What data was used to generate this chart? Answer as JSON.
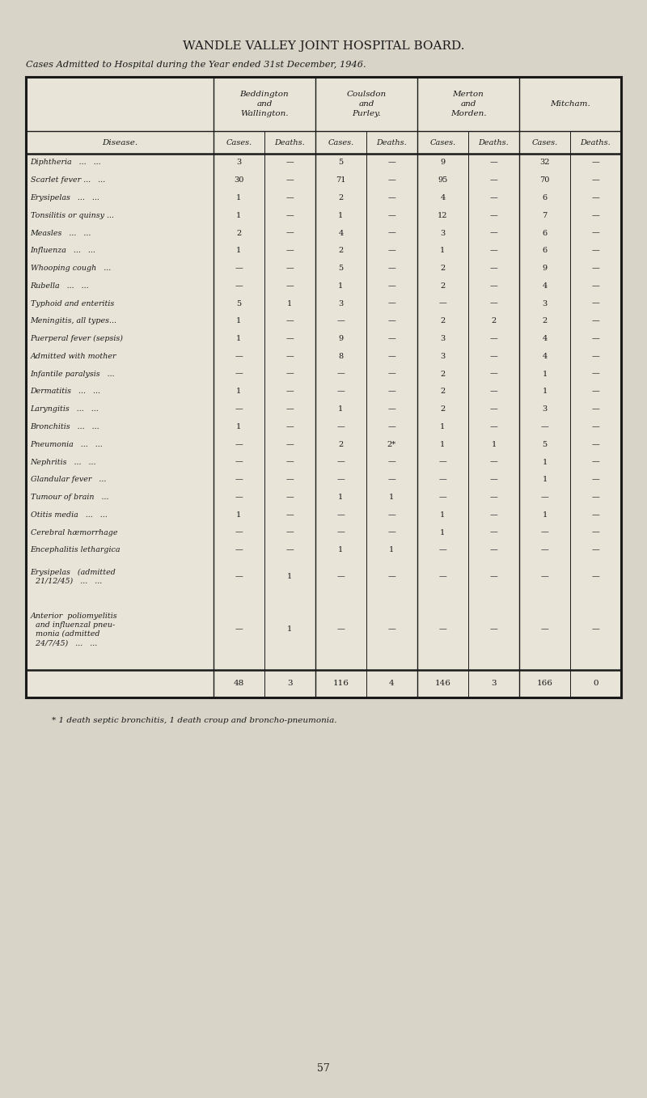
{
  "title": "WANDLE VALLEY JOINT HOSPITAL BOARD.",
  "subtitle": "Cases Admitted to Hospital during the Year ended 31st December, 1946.",
  "bg_color": "#d8d4c8",
  "table_bg": "#e8e4d8",
  "group_headers": [
    "Beddington\nand\nWallington.",
    "Coulsdon\nand\nPurley.",
    "Merton\nand\nMorden.",
    "Mitcham."
  ],
  "sub_header": [
    "Cases.",
    "Deaths.",
    "Cases.",
    "Deaths.",
    "Cases.",
    "Deaths.",
    "Cases.",
    "Deaths."
  ],
  "disease_col_label": "Disease.",
  "rows": [
    {
      "disease": "Diphtheria   ...   ...",
      "vals": [
        "3",
        "—",
        "5",
        "—",
        "9",
        "—",
        "32",
        "—"
      ],
      "lines": 1
    },
    {
      "disease": "Scarlet fever ...   ...",
      "vals": [
        "30",
        "—",
        "71",
        "—",
        "95",
        "—",
        "70",
        "—"
      ],
      "lines": 1
    },
    {
      "disease": "Erysipelas   ...   ...",
      "vals": [
        "1",
        "—",
        "2",
        "—",
        "4",
        "—",
        "6",
        "—"
      ],
      "lines": 1
    },
    {
      "disease": "Tonsilitis or quinsy ...",
      "vals": [
        "1",
        "—",
        "1",
        "—",
        "12",
        "—",
        "7",
        "—"
      ],
      "lines": 1
    },
    {
      "disease": "Measles   ...   ...",
      "vals": [
        "2",
        "—",
        "4",
        "—",
        "3",
        "—",
        "6",
        "—"
      ],
      "lines": 1
    },
    {
      "disease": "Influenza   ...   ...",
      "vals": [
        "1",
        "—",
        "2",
        "—",
        "1",
        "—",
        "6",
        "—"
      ],
      "lines": 1
    },
    {
      "disease": "Whooping cough   ...",
      "vals": [
        "—",
        "—",
        "5",
        "—",
        "2",
        "—",
        "9",
        "—"
      ],
      "lines": 1
    },
    {
      "disease": "Rubella   ...   ...",
      "vals": [
        "—",
        "—",
        "1",
        "—",
        "2",
        "—",
        "4",
        "—"
      ],
      "lines": 1
    },
    {
      "disease": "Typhoid and enteritis",
      "vals": [
        "5",
        "1",
        "3",
        "—",
        "—",
        "—",
        "3",
        "—"
      ],
      "lines": 1
    },
    {
      "disease": "Meningitis, all types...",
      "vals": [
        "1",
        "—",
        "—",
        "—",
        "2",
        "2",
        "2",
        "—"
      ],
      "lines": 1
    },
    {
      "disease": "Puerperal fever (sepsis)",
      "vals": [
        "1",
        "—",
        "9",
        "—",
        "3",
        "—",
        "4",
        "—"
      ],
      "lines": 1
    },
    {
      "disease": "Admitted with mother",
      "vals": [
        "—",
        "—",
        "8",
        "—",
        "3",
        "—",
        "4",
        "—"
      ],
      "lines": 1
    },
    {
      "disease": "Infantile paralysis   ...",
      "vals": [
        "—",
        "—",
        "—",
        "—",
        "2",
        "—",
        "1",
        "—"
      ],
      "lines": 1
    },
    {
      "disease": "Dermatitis   ...   ...",
      "vals": [
        "1",
        "—",
        "—",
        "—",
        "2",
        "—",
        "1",
        "—"
      ],
      "lines": 1
    },
    {
      "disease": "Laryngitis   ...   ...",
      "vals": [
        "—",
        "—",
        "1",
        "—",
        "2",
        "—",
        "3",
        "—"
      ],
      "lines": 1
    },
    {
      "disease": "Bronchitis   ...   ...",
      "vals": [
        "1",
        "—",
        "—",
        "—",
        "1",
        "—",
        "—",
        "—"
      ],
      "lines": 1
    },
    {
      "disease": "Pneumonia   ...   ...",
      "vals": [
        "—",
        "—",
        "2",
        "2*",
        "1",
        "1",
        "5",
        "—"
      ],
      "lines": 1
    },
    {
      "disease": "Nephritis   ...   ...",
      "vals": [
        "—",
        "—",
        "—",
        "—",
        "—",
        "—",
        "1",
        "—"
      ],
      "lines": 1
    },
    {
      "disease": "Glandular fever   ...",
      "vals": [
        "—",
        "—",
        "—",
        "—",
        "—",
        "—",
        "1",
        "—"
      ],
      "lines": 1
    },
    {
      "disease": "Tumour of brain   ...",
      "vals": [
        "—",
        "—",
        "1",
        "1",
        "—",
        "—",
        "—",
        "—"
      ],
      "lines": 1
    },
    {
      "disease": "Otitis media   ...   ...",
      "vals": [
        "1",
        "—",
        "—",
        "—",
        "1",
        "—",
        "1",
        "—"
      ],
      "lines": 1
    },
    {
      "disease": "Cerebral hæmorrhage",
      "vals": [
        "—",
        "—",
        "—",
        "—",
        "1",
        "—",
        "—",
        "—"
      ],
      "lines": 1
    },
    {
      "disease": "Encephalitis lethargica",
      "vals": [
        "—",
        "—",
        "1",
        "1",
        "—",
        "—",
        "—",
        "—"
      ],
      "lines": 1
    },
    {
      "disease": "Erysipelas   (admitted\n  21/12/45)   ...   ...",
      "vals": [
        "—",
        "1",
        "—",
        "—",
        "—",
        "—",
        "—",
        "—"
      ],
      "lines": 2
    },
    {
      "disease": "Anterior  poliomyelitis\n  and influenzal pneu-\n  monia (admitted\n  24/7/45)   ...   ...",
      "vals": [
        "—",
        "1",
        "—",
        "—",
        "—",
        "—",
        "—",
        "—"
      ],
      "lines": 4
    }
  ],
  "totals": [
    "48",
    "3",
    "116",
    "4",
    "146",
    "3",
    "166",
    "0"
  ],
  "footnote": "* 1 death septic bronchitis, 1 death croup and broncho-pneumonia.",
  "page_number": "57"
}
